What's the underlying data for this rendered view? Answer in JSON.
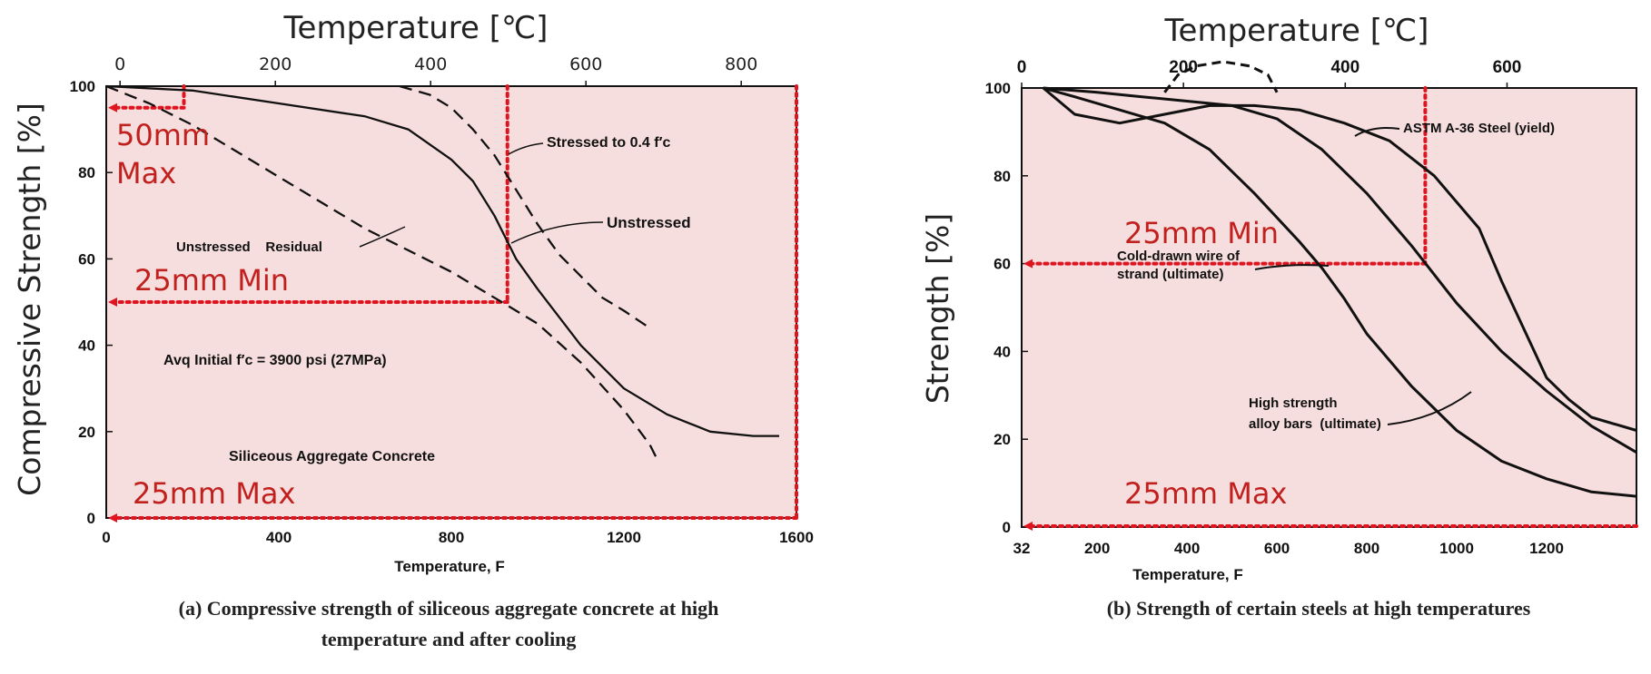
{
  "colors": {
    "zone_fill": "#f7dede",
    "zone_line": "#e0141e",
    "curve": "#111111",
    "red_text": "#c0201e"
  },
  "chart_data": [
    {
      "type": "line",
      "panel": "a",
      "caption_line1": "(a) Compressive strength of siliceous aggregate concrete at high",
      "caption_line2": "temperature and after cooling",
      "top_axis_title": "Temperature [℃]",
      "top_ticks": [
        "0",
        "200",
        "400",
        "600",
        "800"
      ],
      "top_tick_values_c": [
        0,
        200,
        400,
        600,
        800
      ],
      "ylabel": "Compressive Strength [%]",
      "y_ticks": [
        "0",
        "20",
        "40",
        "60",
        "80",
        "100"
      ],
      "ylim": [
        0,
        100
      ],
      "xlabel": "Temperature,  F",
      "x_ticks": [
        "0",
        "400",
        "800",
        "1200",
        "1600"
      ],
      "xlim": [
        0,
        1600
      ],
      "series": [
        {
          "name": "Unstressed",
          "style": "solid",
          "x": [
            0,
            200,
            400,
            600,
            700,
            800,
            850,
            900,
            950,
            1000,
            1100,
            1200,
            1300,
            1400,
            1500,
            1560
          ],
          "y": [
            100,
            99,
            96,
            93,
            90,
            83,
            78,
            70,
            60,
            53,
            40,
            30,
            24,
            20,
            19,
            19
          ]
        },
        {
          "name": "Unstressed Residual",
          "style": "dashed",
          "x": [
            0,
            100,
            200,
            300,
            400,
            500,
            600,
            700,
            800,
            900,
            1000,
            1100,
            1200,
            1260,
            1280
          ],
          "y": [
            100,
            96,
            91,
            85,
            79,
            73,
            67,
            62,
            57,
            51,
            45,
            36,
            25,
            17,
            13
          ]
        },
        {
          "name": "Stressed to 0.4 f'c",
          "style": "dashed",
          "x": [
            680,
            750,
            800,
            850,
            900,
            950,
            1000,
            1050,
            1100,
            1150,
            1200,
            1260
          ],
          "y": [
            100,
            98,
            95,
            90,
            84,
            76,
            68,
            61,
            56,
            51,
            48,
            44
          ]
        }
      ],
      "annotations": {
        "stressed": "Stressed to 0.4 f′c",
        "unstressed": "Unstressed",
        "residual": "Unstressed    Residual",
        "avg_initial": "Avq  Initial f′c = 3900 psi (27MPa)",
        "aggregate": "Siliceous Aggregate Concrete"
      },
      "zone_labels": [
        "50mm",
        "Max",
        "25mm Min",
        "25mm Max"
      ],
      "zone_levels_pct": {
        "50mm_max": 95,
        "25mm_min": 50,
        "25mm_max": 0
      },
      "zone_x_F": {
        "50mm_max": 180,
        "25mm_min": 930
      }
    },
    {
      "type": "line",
      "panel": "b",
      "caption": "(b) Strength of certain steels at high temperatures",
      "top_axis_title": "Temperature [℃]",
      "top_ticks": [
        "0",
        "200",
        "400",
        "600"
      ],
      "top_tick_values_c": [
        0,
        200,
        400,
        600
      ],
      "ylabel": "Strength [%]",
      "y_ticks": [
        "0",
        "20",
        "40",
        "60",
        "80",
        "100"
      ],
      "ylim": [
        0,
        100
      ],
      "xlabel": "Temperature, F",
      "x_ticks": [
        "32",
        "200",
        "400",
        "600",
        "800",
        "1000",
        "1200"
      ],
      "x_tick_values": [
        32,
        200,
        400,
        600,
        800,
        1000,
        1200
      ],
      "xlim": [
        32,
        1400
      ],
      "series": [
        {
          "name": "ASTM A-36 Steel (yield)",
          "style": "solid",
          "x": [
            80,
            150,
            250,
            350,
            450,
            550,
            650,
            750,
            850,
            950,
            1050,
            1100,
            1150,
            1200,
            1250,
            1300,
            1400
          ],
          "y": [
            100,
            94,
            92,
            94,
            96,
            96,
            95,
            92,
            88,
            80,
            68,
            56,
            45,
            34,
            29,
            25,
            22
          ]
        },
        {
          "name": "Cold-drawn wire of strand (ultimate)",
          "style": "solid",
          "x": [
            80,
            150,
            250,
            350,
            450,
            550,
            650,
            700,
            750,
            800,
            900,
            1000,
            1100,
            1200,
            1300,
            1400
          ],
          "y": [
            100,
            98,
            95,
            92,
            86,
            76,
            65,
            59,
            52,
            44,
            32,
            22,
            15,
            11,
            8,
            7
          ]
        },
        {
          "name": "High strength alloy bars (ultimate)",
          "style": "solid",
          "x": [
            80,
            200,
            300,
            400,
            500,
            600,
            700,
            800,
            900,
            1000,
            1100,
            1200,
            1300,
            1400
          ],
          "y": [
            100,
            99,
            98,
            97,
            96,
            93,
            86,
            76,
            64,
            51,
            40,
            31,
            23,
            17
          ]
        },
        {
          "name": "dashed hump",
          "style": "dashed",
          "x": [
            350,
            380,
            420,
            480,
            540,
            580,
            600
          ],
          "y": [
            99,
            103,
            105,
            106,
            105,
            103,
            99
          ]
        }
      ],
      "annotations": {
        "a36": "ASTM A-36 Steel (yield)",
        "cold1": "Cold-drawn wire of",
        "cold2": "strand (ultimate)",
        "hs1": "High strength",
        "hs2": "alloy bars  (ultimate)"
      },
      "zone_labels": [
        "25mm Min",
        "25mm Max"
      ],
      "zone_levels_pct": {
        "25mm_min": 60,
        "25mm_max": 0
      },
      "zone_x_F": {
        "25mm_min": 930
      }
    }
  ]
}
